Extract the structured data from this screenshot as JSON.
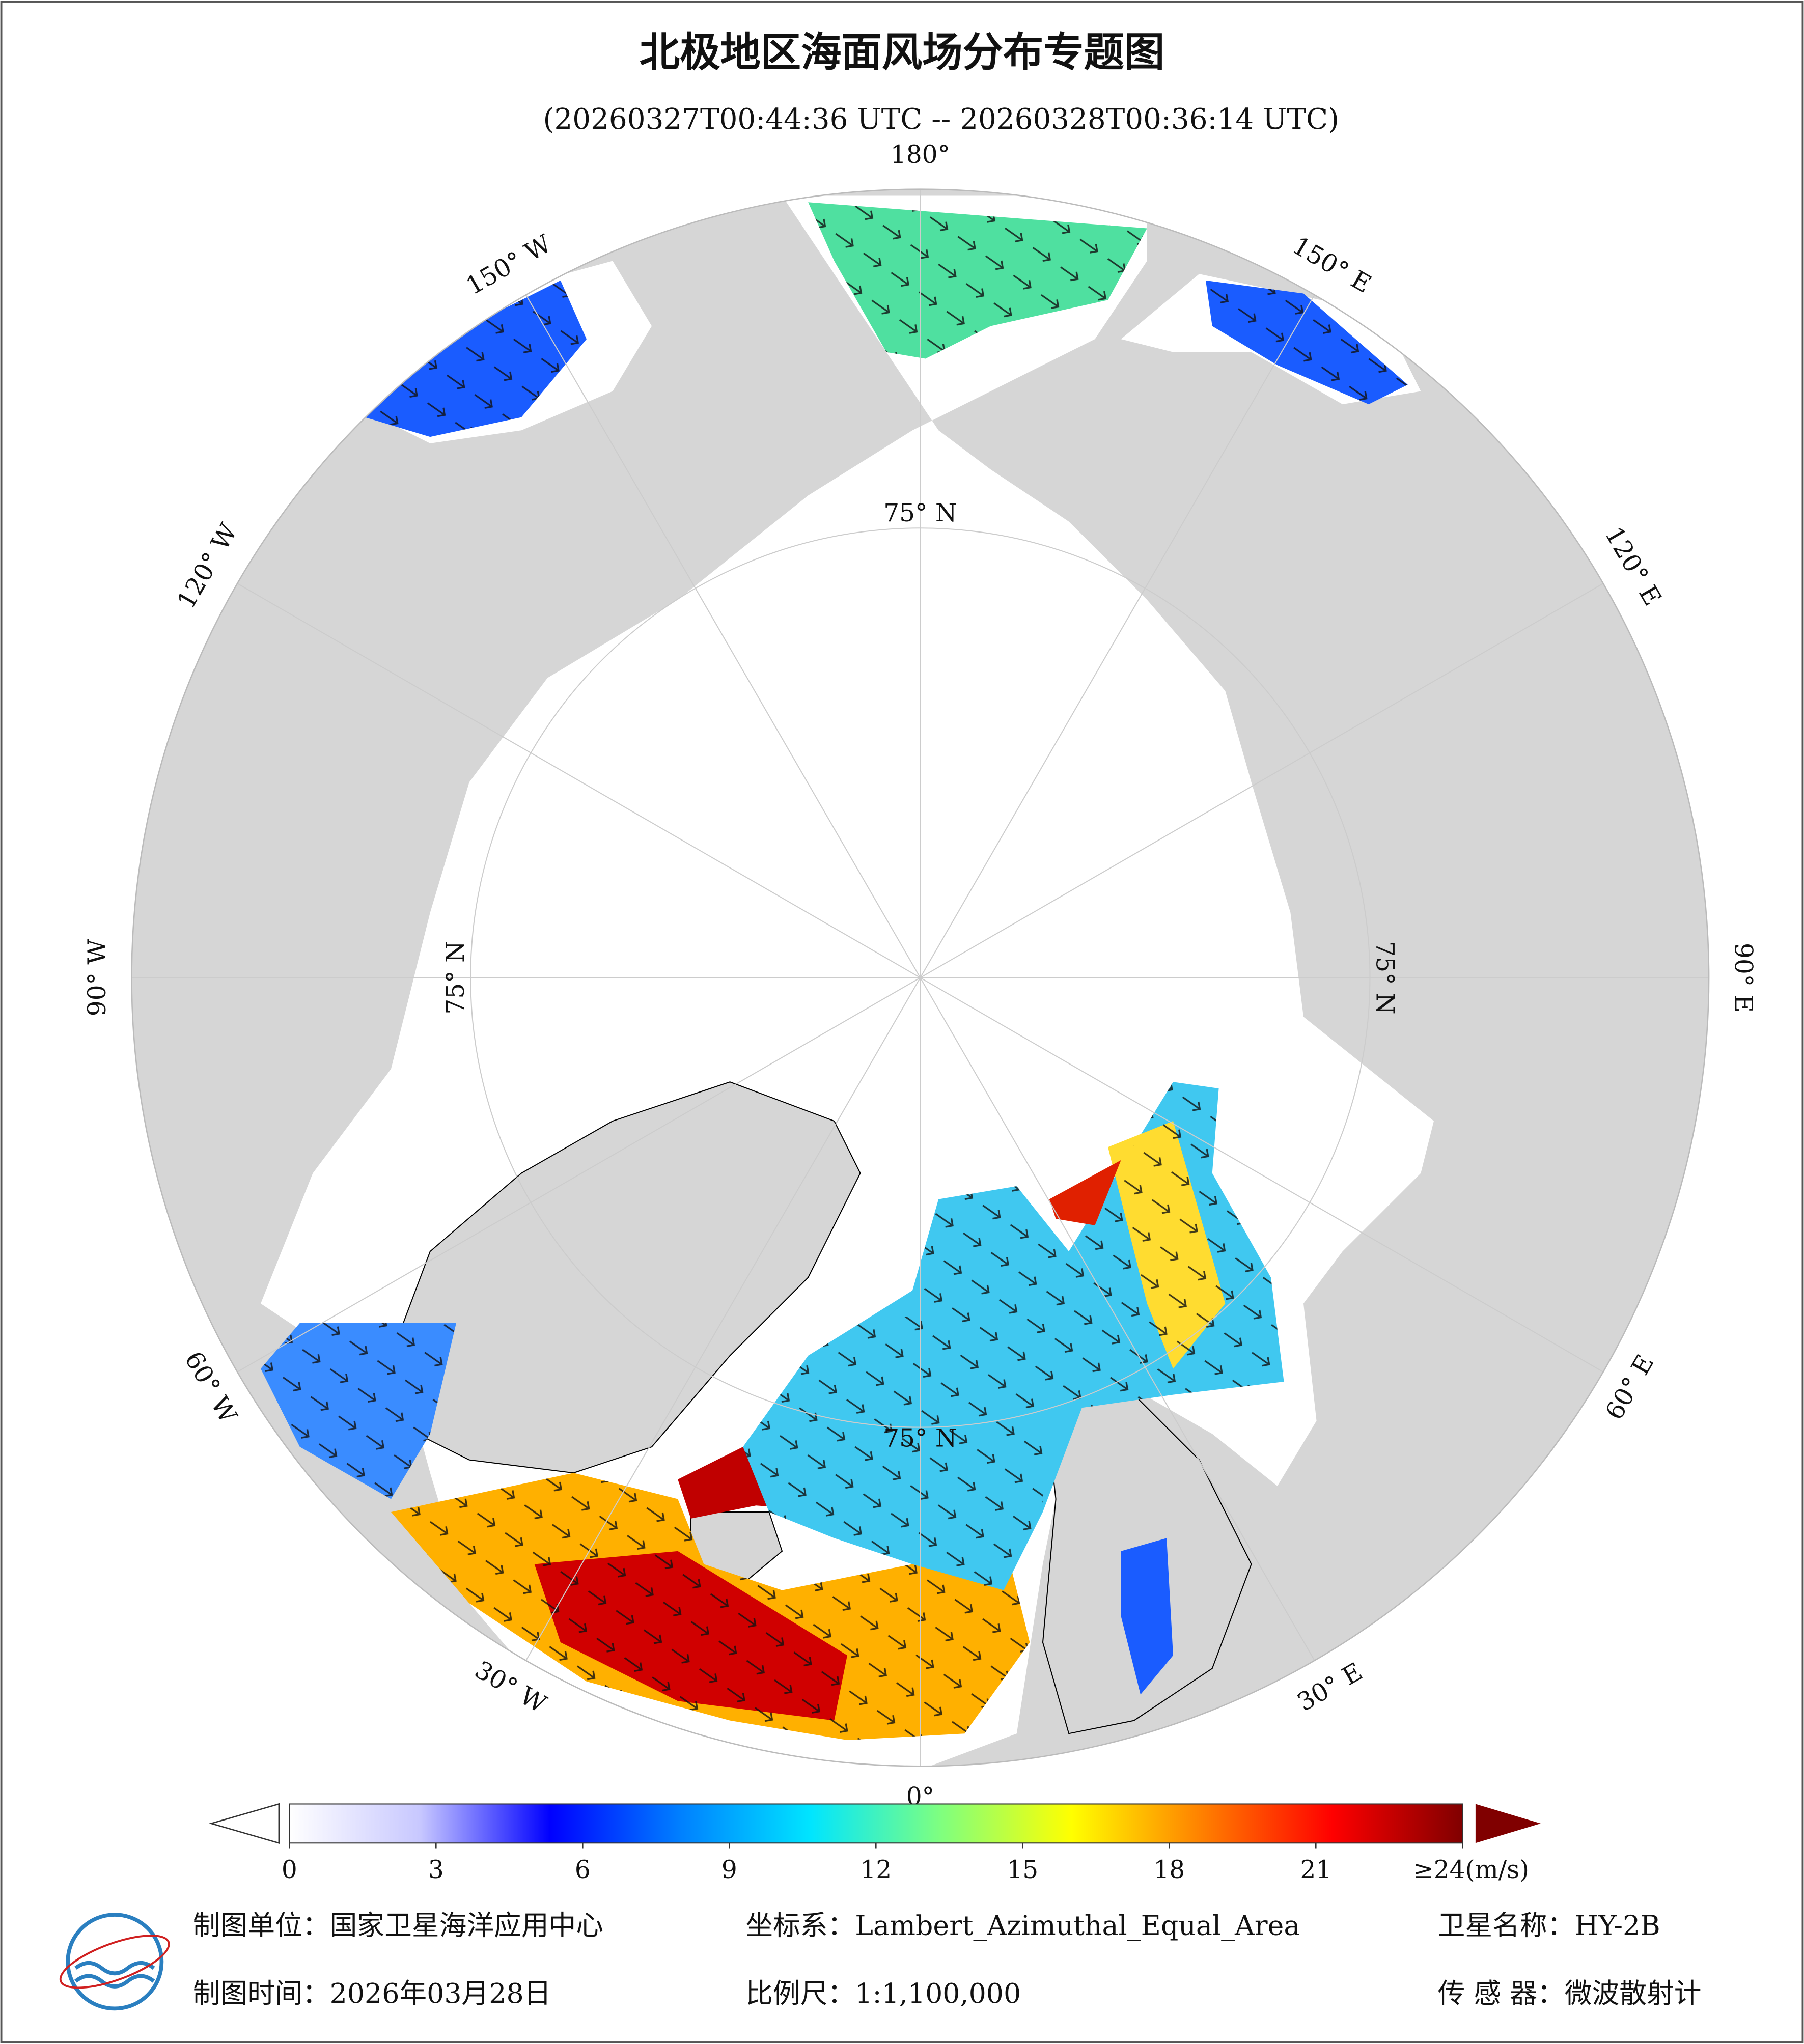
{
  "title": "北极地区海面风场分布专题图",
  "subtitle": "(20260327T00:44:36 UTC -- 20260328T00:36:14 UTC)",
  "meridian_labels": [
    "180°",
    "150° E",
    "120° E",
    "90° E",
    "60° E",
    "30° E",
    "0°",
    "30° W",
    "60° W",
    "90° W",
    "120° W",
    "150° W"
  ],
  "latitude_labels": [
    "75° N",
    "75° N",
    "75° N",
    "75° N"
  ],
  "colorbar": {
    "colors": [
      "#ffffff",
      "#c8c8ff",
      "#0000ff",
      "#0080ff",
      "#00e5ff",
      "#7fff7f",
      "#ffff00",
      "#ff8000",
      "#ff0000",
      "#800000"
    ],
    "range": [
      0,
      24
    ],
    "ticks": [
      0,
      3,
      6,
      9,
      12,
      15,
      18,
      21,
      {
        "value": 24,
        "label": "≥24(m/s)"
      }
    ]
  },
  "footer": {
    "unit": "制图单位：国家卫星海洋应用中心",
    "projection": "坐标系：Lambert_Azimuthal_Equal_Area",
    "satellite": "卫星名称：HY-2B",
    "date": "制图时间：2026年03月28日",
    "scale": "比例尺：1:1,100,000",
    "sensor": "传 感 器：微波散射计"
  }
}
